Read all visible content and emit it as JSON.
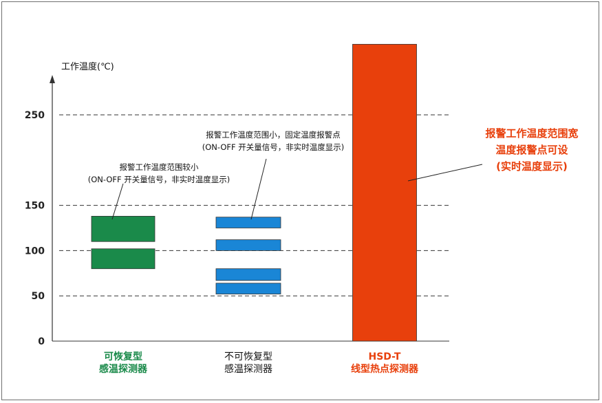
{
  "chart_data": {
    "type": "bar",
    "ylabel": "工作温度(℃)",
    "ylim": [
      0,
      300
    ],
    "yticks": [
      0,
      50,
      100,
      150,
      250
    ],
    "grid": "dashed horizontal lines at 50, 100, 150, 250",
    "categories": [
      {
        "lines": [
          "可恢复型",
          "感温探测器"
        ],
        "color": "#1a8a4a",
        "ranges": [
          [
            80,
            102
          ],
          [
            110,
            138
          ]
        ],
        "annotation": [
          "报警工作温度范围较小",
          "(ON-OFF 开关量信号，非实时温度显示)"
        ]
      },
      {
        "lines": [
          "不可恢复型",
          "感温探测器"
        ],
        "color": "#1a86d6",
        "ranges": [
          [
            52,
            64
          ],
          [
            67,
            80
          ],
          [
            100,
            112
          ],
          [
            125,
            137
          ]
        ],
        "annotation": [
          "报警工作温度范围小，固定温度报警点",
          "(ON-OFF 开关量信号，非实时温度显示)"
        ]
      },
      {
        "lines": [
          "HSD-T",
          "线型热点探测器"
        ],
        "color": "#e8400c",
        "ranges": [
          [
            0,
            328
          ]
        ],
        "annotation": [
          "报警工作温度范围宽",
          "温度报警点可设",
          "(实时温度显示)"
        ]
      }
    ]
  },
  "colors": {
    "label_text": "#222222",
    "grid": "#333333",
    "bar_outline": "#333333"
  }
}
